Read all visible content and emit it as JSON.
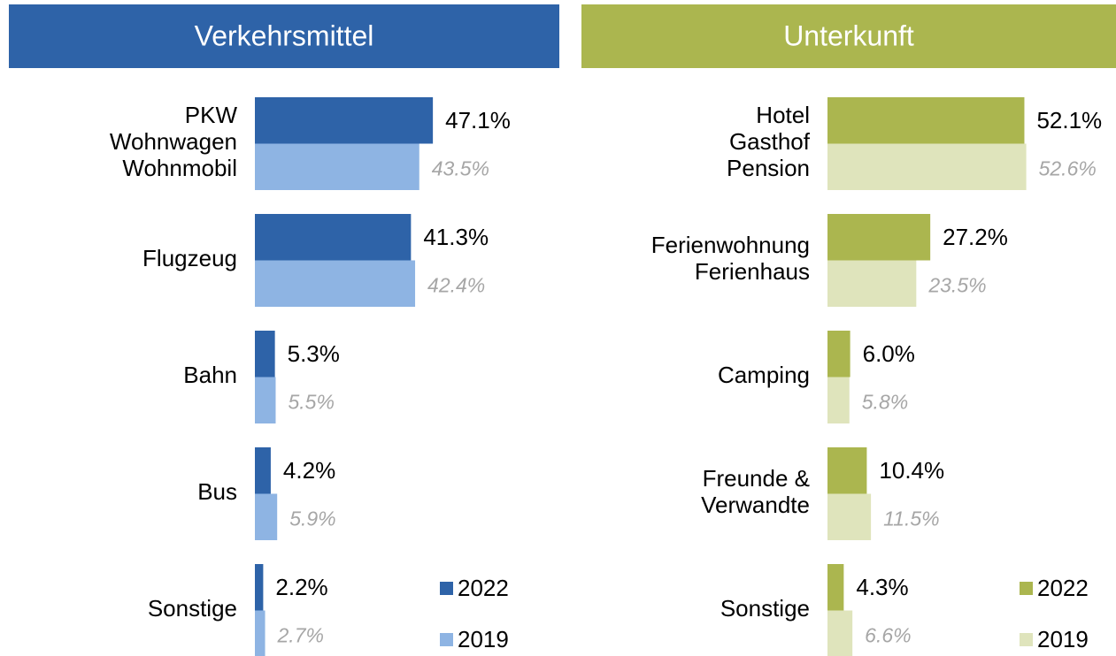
{
  "chart_data": [
    {
      "type": "bar",
      "orientation": "horizontal",
      "title": "Verkehrsmittel",
      "header_color": "#2e63a8",
      "categories": [
        [
          "PKW",
          "Wohnwagen",
          "Wohnmobil"
        ],
        [
          "Flugzeug"
        ],
        [
          "Bahn"
        ],
        [
          "Bus"
        ],
        [
          "Sonstige"
        ]
      ],
      "xlim": [
        0,
        100
      ],
      "series": [
        {
          "name": "2022",
          "color": "#2e63a8",
          "values": [
            47.1,
            41.3,
            5.3,
            4.2,
            2.2
          ],
          "value_labels": [
            "47.1%",
            "41.3%",
            "5.3%",
            "4.2%",
            "2.2%"
          ]
        },
        {
          "name": "2019",
          "color": "#8eb4e3",
          "values": [
            43.5,
            42.4,
            5.5,
            5.9,
            2.7
          ],
          "value_labels": [
            "43.5%",
            "42.4%",
            "5.5%",
            "5.9%",
            "2.7%"
          ]
        }
      ]
    },
    {
      "type": "bar",
      "orientation": "horizontal",
      "title": "Unterkunft",
      "header_color": "#abb64f",
      "categories": [
        [
          "Hotel",
          "Gasthof",
          "Pension"
        ],
        [
          "Ferienwohnung",
          "Ferienhaus"
        ],
        [
          "Camping"
        ],
        [
          "Freunde &",
          "Verwandte"
        ],
        [
          "Sonstige"
        ]
      ],
      "xlim": [
        0,
        100
      ],
      "series": [
        {
          "name": "2022",
          "color": "#abb64f",
          "values": [
            52.1,
            27.2,
            6.0,
            10.4,
            4.3
          ],
          "value_labels": [
            "52.1%",
            "27.2%",
            "6.0%",
            "10.4%",
            "4.3%"
          ]
        },
        {
          "name": "2019",
          "color": "#dfe4bc",
          "values": [
            52.6,
            23.5,
            5.8,
            11.5,
            6.6
          ],
          "value_labels": [
            "52.6%",
            "23.5%",
            "5.8%",
            "11.5%",
            "6.6%"
          ]
        }
      ]
    }
  ]
}
